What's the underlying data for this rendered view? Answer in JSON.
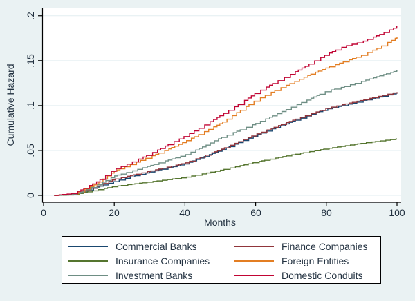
{
  "figure": {
    "background": "#eaf2f3",
    "plot_background": "#ffffff",
    "grid_color": "#e2eef0",
    "axis_color": "#000000",
    "text_color": "#233241"
  },
  "axes": {
    "y": {
      "title": "Cumulative Hazard",
      "ticks": [
        "0",
        ".05",
        ".1",
        ".15",
        ".2"
      ],
      "tick_values": [
        0,
        0.05,
        0.1,
        0.15,
        0.2
      ]
    },
    "x": {
      "title": "Months",
      "ticks": [
        "0",
        "20",
        "40",
        "60",
        "80",
        "100"
      ],
      "tick_values": [
        0,
        20,
        40,
        60,
        80,
        100
      ]
    }
  },
  "chart_data": {
    "type": "line",
    "style": "step",
    "title": "",
    "xlabel": "Months",
    "ylabel": "Cumulative Hazard",
    "xlim": [
      0,
      100
    ],
    "ylim": [
      0,
      0.2
    ],
    "grid": "horizontal",
    "legend_position": "bottom",
    "x_anchors": [
      3,
      8,
      10,
      15,
      20,
      25,
      30,
      35,
      40,
      45,
      50,
      55,
      60,
      65,
      70,
      75,
      80,
      85,
      90,
      95,
      100
    ],
    "series": [
      {
        "name": "Commercial Banks",
        "color": "#1a476f",
        "values": [
          0,
          0.001,
          0.0025,
          0.009,
          0.0155,
          0.021,
          0.026,
          0.0305,
          0.035,
          0.0425,
          0.05,
          0.0585,
          0.067,
          0.0745,
          0.082,
          0.089,
          0.096,
          0.1005,
          0.105,
          0.1095,
          0.114
        ]
      },
      {
        "name": "Finance Companies",
        "color": "#90353b",
        "values": [
          0,
          0.001,
          0.003,
          0.01,
          0.018,
          0.0225,
          0.027,
          0.0315,
          0.036,
          0.0435,
          0.051,
          0.0595,
          0.068,
          0.0755,
          0.083,
          0.09,
          0.097,
          0.1015,
          0.106,
          0.1105,
          0.115
        ]
      },
      {
        "name": "Insurance Companies",
        "color": "#55752f",
        "values": [
          0,
          0.0005,
          0.002,
          0.006,
          0.01,
          0.0125,
          0.015,
          0.0175,
          0.02,
          0.024,
          0.028,
          0.0325,
          0.037,
          0.041,
          0.045,
          0.0485,
          0.052,
          0.055,
          0.058,
          0.0605,
          0.063
        ]
      },
      {
        "name": "Foreign Entities",
        "color": "#e37e23",
        "values": [
          0,
          0.0015,
          0.004,
          0.013,
          0.027,
          0.035,
          0.043,
          0.051,
          0.06,
          0.07,
          0.08,
          0.093,
          0.106,
          0.116,
          0.125,
          0.134,
          0.142,
          0.149,
          0.156,
          0.165,
          0.176
        ]
      },
      {
        "name": "Investment Banks",
        "color": "#6e8e84",
        "values": [
          0,
          0.001,
          0.003,
          0.011,
          0.0215,
          0.027,
          0.033,
          0.039,
          0.045,
          0.054,
          0.064,
          0.072,
          0.08,
          0.089,
          0.098,
          0.107,
          0.116,
          0.121,
          0.127,
          0.133,
          0.139
        ]
      },
      {
        "name": "Domestic Conduits",
        "color": "#c10534",
        "values": [
          0,
          0.002,
          0.005,
          0.015,
          0.029,
          0.037,
          0.046,
          0.056,
          0.066,
          0.077,
          0.089,
          0.101,
          0.114,
          0.125,
          0.135,
          0.146,
          0.157,
          0.166,
          0.171,
          0.179,
          0.188
        ]
      }
    ]
  },
  "legend": {
    "order": [
      0,
      1,
      2,
      3,
      4,
      5
    ]
  }
}
